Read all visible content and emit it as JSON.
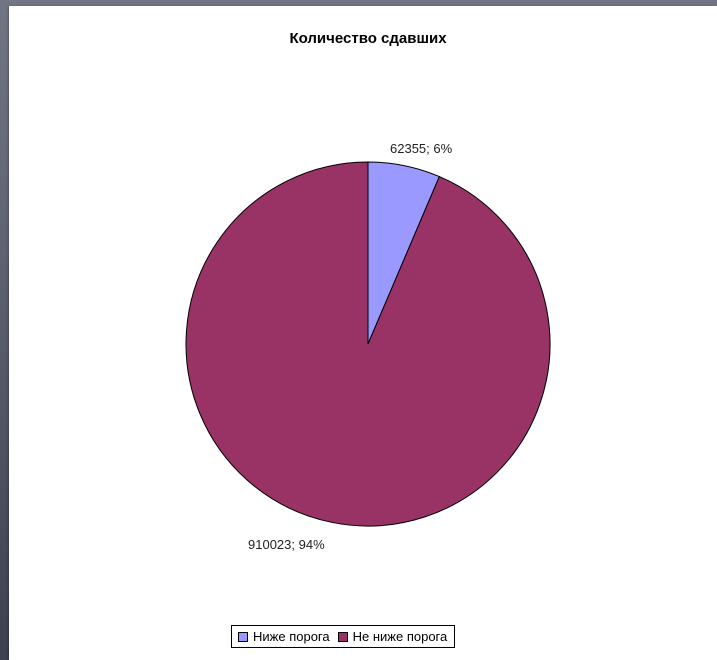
{
  "chart_data": {
    "type": "pie",
    "title": "Количество сдавших",
    "categories": [
      "Ниже порога",
      "Не ниже порога"
    ],
    "values": [
      62355,
      910023
    ],
    "percents": [
      "6%",
      "94%"
    ],
    "data_labels": [
      "62355; 6%",
      "910023; 94%"
    ],
    "colors": [
      "#9999FF",
      "#993366"
    ],
    "legend": {
      "position": "bottom",
      "entries": [
        "Ниже порога",
        "Не ниже порога"
      ]
    }
  }
}
